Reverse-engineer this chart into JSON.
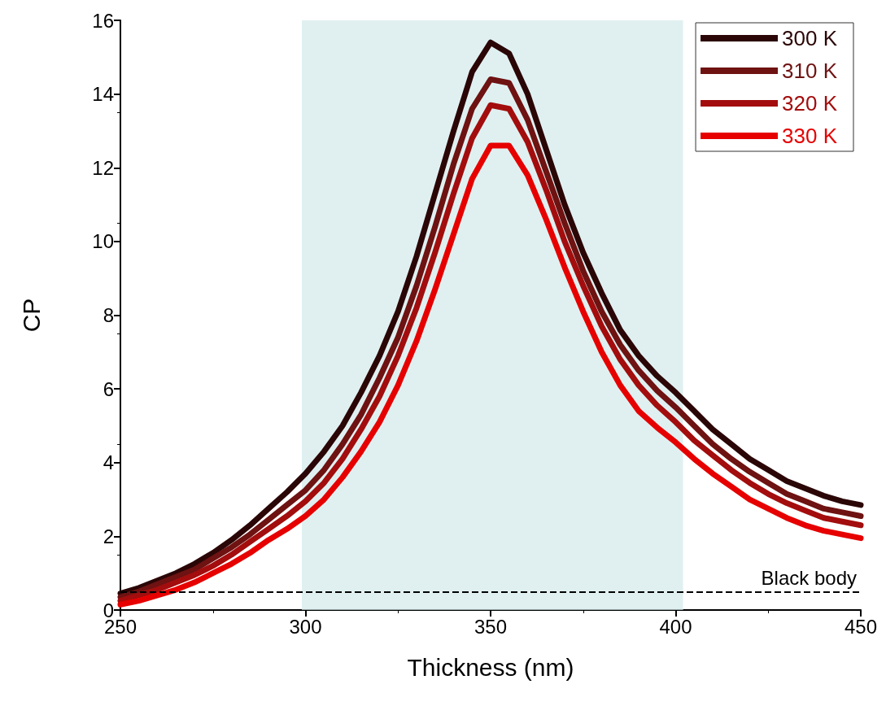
{
  "chart_data": {
    "type": "line",
    "xlabel": "Thickness (nm)",
    "ylabel": "CP",
    "x": [
      250,
      255,
      260,
      265,
      270,
      275,
      280,
      285,
      290,
      295,
      300,
      305,
      310,
      315,
      320,
      325,
      330,
      335,
      340,
      345,
      350,
      355,
      360,
      365,
      370,
      375,
      380,
      385,
      390,
      395,
      400,
      405,
      410,
      415,
      420,
      425,
      430,
      435,
      440,
      445,
      450
    ],
    "series": [
      {
        "name": "300 K",
        "color": "#2b0606",
        "values": [
          0.45,
          0.6,
          0.8,
          1.0,
          1.25,
          1.55,
          1.9,
          2.3,
          2.75,
          3.2,
          3.7,
          4.3,
          5.0,
          5.9,
          6.9,
          8.1,
          9.6,
          11.3,
          13.0,
          14.6,
          15.4,
          15.1,
          14.0,
          12.5,
          11.0,
          9.7,
          8.6,
          7.6,
          6.9,
          6.35,
          5.9,
          5.4,
          4.9,
          4.5,
          4.1,
          3.8,
          3.5,
          3.3,
          3.1,
          2.95,
          2.85
        ]
      },
      {
        "name": "310 K",
        "color": "#6e1212",
        "values": [
          0.35,
          0.5,
          0.7,
          0.9,
          1.1,
          1.4,
          1.7,
          2.05,
          2.45,
          2.85,
          3.25,
          3.8,
          4.5,
          5.3,
          6.3,
          7.4,
          8.8,
          10.4,
          12.1,
          13.6,
          14.4,
          14.3,
          13.3,
          11.9,
          10.5,
          9.2,
          8.1,
          7.2,
          6.5,
          5.95,
          5.5,
          5.0,
          4.5,
          4.1,
          3.75,
          3.45,
          3.15,
          2.95,
          2.75,
          2.65,
          2.55
        ]
      },
      {
        "name": "320 K",
        "color": "#a30d0d",
        "values": [
          0.25,
          0.4,
          0.55,
          0.75,
          0.95,
          1.2,
          1.5,
          1.85,
          2.2,
          2.55,
          2.95,
          3.45,
          4.1,
          4.9,
          5.8,
          6.9,
          8.2,
          9.7,
          11.3,
          12.8,
          13.7,
          13.6,
          12.7,
          11.4,
          10.0,
          8.8,
          7.7,
          6.8,
          6.1,
          5.55,
          5.1,
          4.6,
          4.2,
          3.8,
          3.45,
          3.15,
          2.9,
          2.7,
          2.5,
          2.4,
          2.3
        ]
      },
      {
        "name": "330 K",
        "color": "#e60000",
        "values": [
          0.15,
          0.25,
          0.4,
          0.55,
          0.75,
          1.0,
          1.25,
          1.55,
          1.9,
          2.2,
          2.55,
          3.0,
          3.6,
          4.3,
          5.1,
          6.1,
          7.3,
          8.7,
          10.2,
          11.7,
          12.6,
          12.6,
          11.8,
          10.6,
          9.3,
          8.1,
          7.0,
          6.1,
          5.4,
          4.95,
          4.55,
          4.1,
          3.7,
          3.35,
          3.0,
          2.75,
          2.5,
          2.3,
          2.15,
          2.05,
          1.95
        ]
      }
    ],
    "xlim": [
      250,
      450
    ],
    "xticks": [
      250,
      300,
      350,
      400,
      450
    ],
    "ylim": [
      0,
      16
    ],
    "yticks": [
      0,
      2,
      4,
      6,
      8,
      10,
      12,
      14,
      16
    ],
    "ref_lines": [
      {
        "axis": "y",
        "value": 0.5,
        "label": "Black body",
        "color": "#000000",
        "line_style": "dashed"
      }
    ],
    "bands": [
      {
        "axis": "x",
        "from": 299,
        "to": 402,
        "color": "#d3e9eb"
      }
    ],
    "grid": false,
    "legend": "top right",
    "marker": "none",
    "line_style": "solid"
  }
}
